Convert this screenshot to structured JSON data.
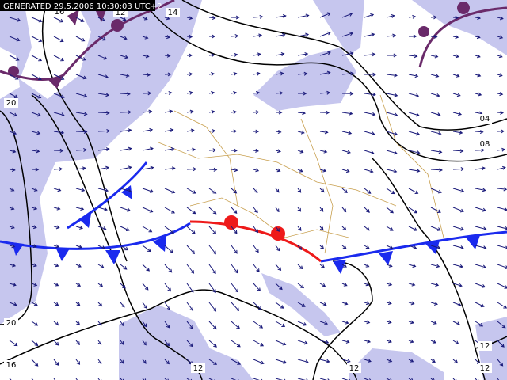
{
  "header": {
    "generated": "GENERATED 29.5.2006 10:30:03 UTC+2"
  },
  "isobar_labels": [
    "16",
    "12",
    "14",
    "20",
    "04",
    "08",
    "20",
    "16",
    "12",
    "12",
    "12",
    "12"
  ]
}
